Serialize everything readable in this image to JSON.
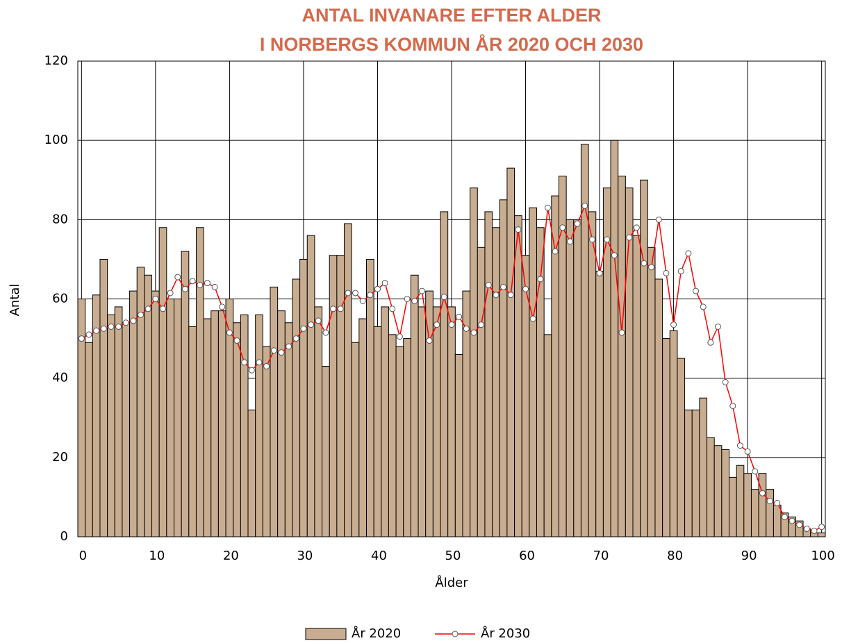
{
  "chart_data": {
    "type": "bar+line",
    "title": [
      "ANTAL INVANARE EFTER ALDER",
      "I NORBERGS KOMMUN ÅR 2020 OCH 2030"
    ],
    "x_label": "Ålder",
    "y_label": "Antal",
    "x": [
      0,
      1,
      2,
      3,
      4,
      5,
      6,
      7,
      8,
      9,
      10,
      11,
      12,
      13,
      14,
      15,
      16,
      17,
      18,
      19,
      20,
      21,
      22,
      23,
      24,
      25,
      26,
      27,
      28,
      29,
      30,
      31,
      32,
      33,
      34,
      35,
      36,
      37,
      38,
      39,
      40,
      41,
      42,
      43,
      44,
      45,
      46,
      47,
      48,
      49,
      50,
      51,
      52,
      53,
      54,
      55,
      56,
      57,
      58,
      59,
      60,
      61,
      62,
      63,
      64,
      65,
      66,
      67,
      68,
      69,
      70,
      71,
      72,
      73,
      74,
      75,
      76,
      77,
      78,
      79,
      80,
      81,
      82,
      83,
      84,
      85,
      86,
      87,
      88,
      89,
      90,
      91,
      92,
      93,
      94,
      95,
      96,
      97,
      98,
      99,
      100
    ],
    "series": [
      {
        "name": "År 2020",
        "type": "bar",
        "color": "#c9ad90",
        "values": [
          60,
          49,
          61,
          70,
          56,
          58,
          54,
          62,
          68,
          66,
          62,
          78,
          60,
          60,
          72,
          53,
          78,
          55,
          57,
          57,
          60,
          54,
          56,
          32,
          56,
          48,
          63,
          57,
          54,
          65,
          70,
          76,
          58,
          43,
          71,
          71,
          79,
          49,
          55,
          70,
          53,
          58,
          51,
          48,
          50,
          66,
          58,
          62,
          58,
          82,
          58,
          46,
          62,
          88,
          73,
          82,
          78,
          85,
          93,
          81,
          71,
          83,
          78,
          51,
          86,
          91,
          80,
          80,
          99,
          82,
          67,
          88,
          100,
          91,
          88,
          76,
          90,
          73,
          65,
          50,
          52,
          45,
          32,
          32,
          35,
          25,
          23,
          22,
          15,
          18,
          16,
          12,
          16,
          12,
          8,
          6,
          5,
          4,
          2,
          1,
          1
        ]
      },
      {
        "name": "År 2030",
        "type": "line",
        "color": "#ff0000",
        "values": [
          50,
          51,
          52,
          52.5,
          53,
          53,
          54,
          54.5,
          56,
          57.5,
          60,
          57.5,
          61.5,
          65.5,
          62.5,
          64.5,
          63.5,
          64,
          63,
          58,
          51.5,
          49.5,
          44,
          42,
          44,
          43,
          47,
          46.5,
          48,
          50,
          52.5,
          53.5,
          54.5,
          51.5,
          57.5,
          57.5,
          61.5,
          61.5,
          59.5,
          61,
          62.5,
          64,
          57.5,
          50.5,
          60,
          59.5,
          62,
          49.5,
          53.5,
          60.5,
          53.5,
          55.5,
          52.5,
          51.5,
          53.5,
          63.5,
          61,
          63,
          61,
          77.5,
          62.5,
          55,
          65,
          83,
          72,
          78,
          74.5,
          79,
          83.5,
          75,
          66.5,
          75,
          71,
          51.5,
          75.5,
          78,
          69,
          68,
          80,
          66.5,
          53.5,
          67,
          71.5,
          62,
          58,
          49,
          53,
          39,
          33,
          23,
          21.5,
          16.5,
          11,
          9,
          8.5,
          5,
          4,
          3,
          2,
          1.5,
          2.5
        ]
      }
    ],
    "xlim": [
      -0.5,
      100.5
    ],
    "xticks": [
      0,
      10,
      20,
      30,
      40,
      50,
      60,
      70,
      80,
      90,
      100
    ],
    "ylim": [
      0,
      120
    ],
    "yticks": [
      0,
      20,
      40,
      60,
      80,
      100,
      120
    ],
    "grid": true,
    "legend": "bottom"
  }
}
